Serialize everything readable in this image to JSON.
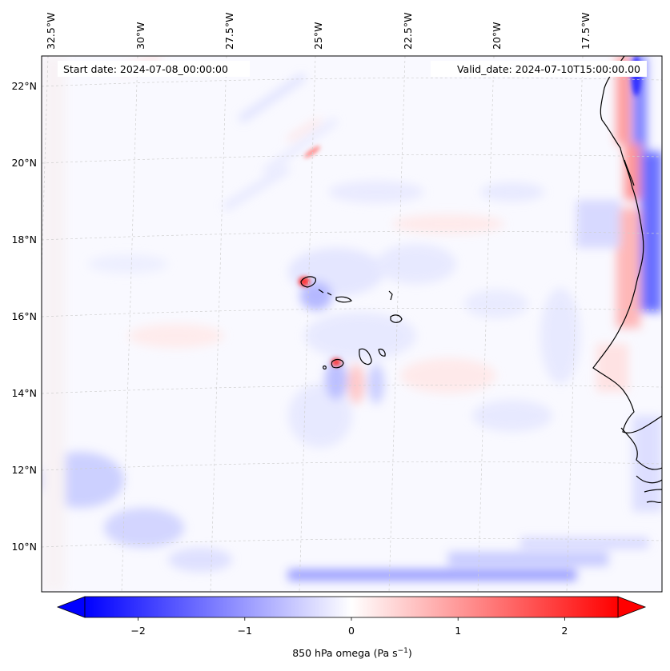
{
  "header": {
    "start_date": "Start date: 2024-07-08_00:00:00",
    "valid_date": "Valid_date: 2024-07-10T15:00:00.00"
  },
  "longitude_labels": [
    "32.5°W",
    "30°W",
    "27.5°W",
    "25°W",
    "22.5°W",
    "20°W",
    "17.5°W"
  ],
  "latitude_labels": [
    "22°N",
    "20°N",
    "18°N",
    "16°N",
    "14°N",
    "12°N",
    "10°N"
  ],
  "colorbar": {
    "label_text": "850 hPa omega (Pa s",
    "label_exp": "−1",
    "label_close": ")",
    "ticks": [
      "−2",
      "−1",
      "0",
      "1",
      "2"
    ],
    "tick_values": [
      -2,
      -1,
      0,
      1,
      2
    ],
    "range": [
      -2.5,
      2.5
    ],
    "levels": 40,
    "cmap": "bwr",
    "extend": "both",
    "colors": {
      "negative": "#0000ff",
      "zero": "#ffffff",
      "positive": "#ff0000"
    }
  },
  "map": {
    "projection": "conic",
    "gridlines": true,
    "gridline_style": "dashed",
    "coastline_color": "#000000",
    "features": [
      "Cape Verde islands",
      "West African coastline"
    ]
  }
}
